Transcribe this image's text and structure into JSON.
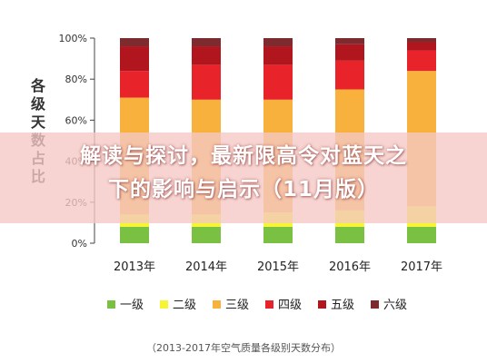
{
  "overlay": {
    "title_line1": "解读与探讨，最新限高令对蓝天之",
    "title_line2": "下的影响与启示（11月版）"
  },
  "caption": "（2013-2017年空气质量各级别天数分布）",
  "chart_data": {
    "type": "bar",
    "stacked": true,
    "percent_stacked": true,
    "ylabel": "各级天数占比",
    "ylim": [
      0,
      100
    ],
    "yticks": [
      "0%",
      "20%",
      "40%",
      "60%",
      "80%",
      "100%"
    ],
    "categories": [
      "2013年",
      "2014年",
      "2015年",
      "2016年",
      "2017年"
    ],
    "series": [
      {
        "name": "一级",
        "color": "#7ac143",
        "values": [
          8,
          8,
          8,
          8,
          8
        ]
      },
      {
        "name": "二级",
        "color": "#f7f432",
        "values": [
          6,
          6,
          7,
          8,
          10
        ]
      },
      {
        "name": "三级",
        "color": "#f7b13c",
        "values": [
          57,
          56,
          55,
          59,
          66
        ]
      },
      {
        "name": "四级",
        "color": "#e8232a",
        "values": [
          13,
          17,
          17,
          14,
          10
        ]
      },
      {
        "name": "五级",
        "color": "#b1161f",
        "values": [
          12,
          9,
          9,
          8,
          4
        ]
      },
      {
        "name": "六级",
        "color": "#7e2b2f",
        "values": [
          4,
          4,
          4,
          3,
          2
        ]
      }
    ],
    "legend_position": "bottom",
    "grid": false
  }
}
